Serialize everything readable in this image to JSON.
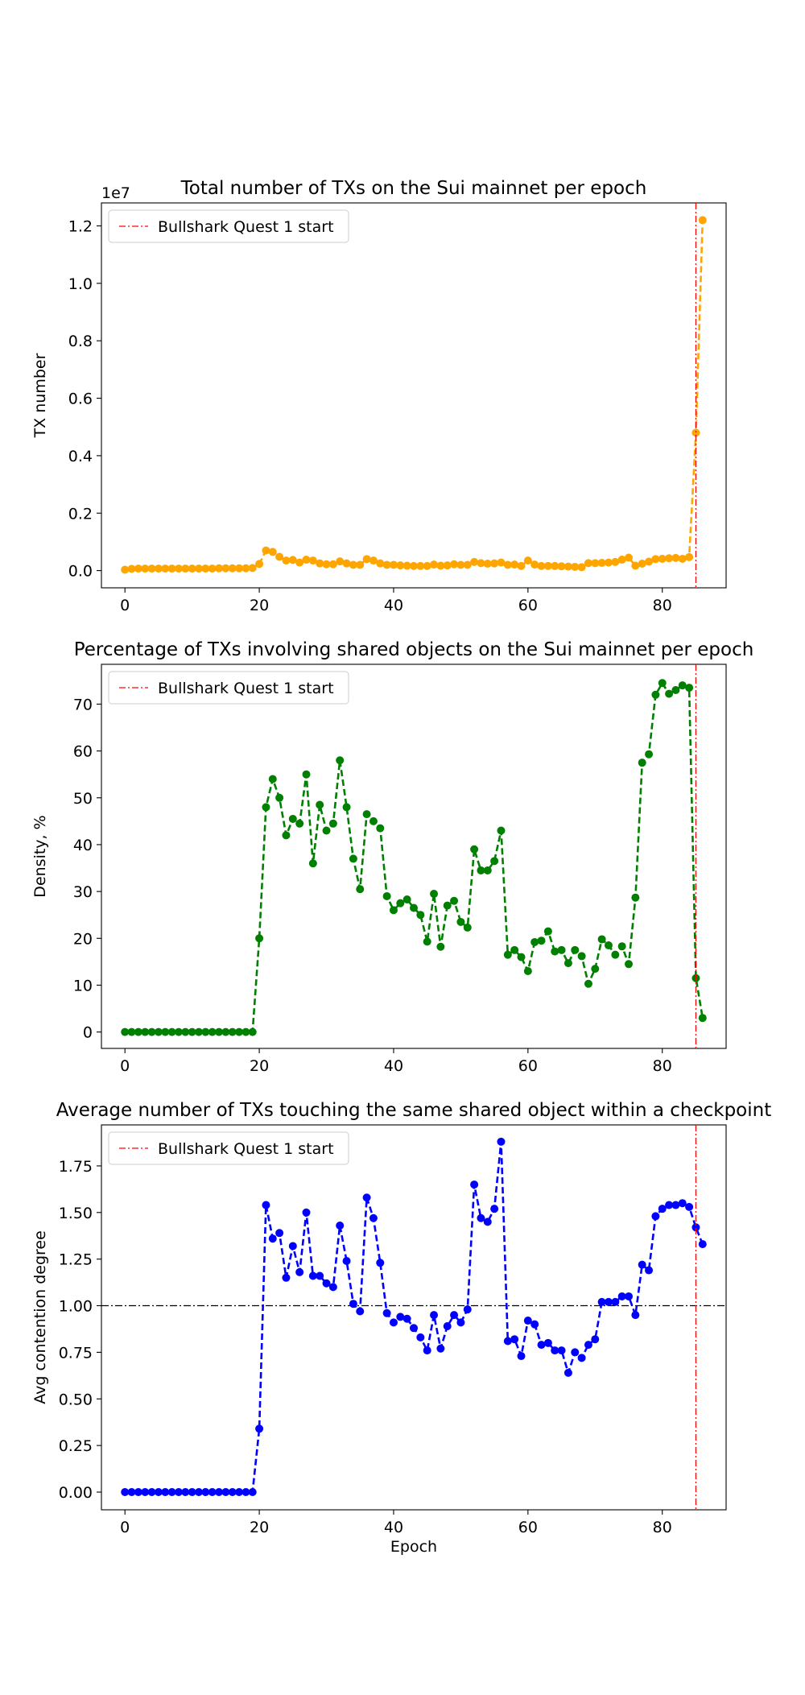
{
  "chart_data": [
    {
      "type": "line",
      "title": "Total number of TXs on the Sui mainnet per epoch",
      "xlabel": "",
      "ylabel": "TX number",
      "offset_text": "1e7",
      "xlim": [
        -3.5,
        89.5
      ],
      "ylim": [
        -0.06,
        1.28
      ],
      "scale": 10000000,
      "xticks": [
        0,
        20,
        40,
        60,
        80
      ],
      "yticks": [
        0.0,
        0.2,
        0.4,
        0.6,
        0.8,
        1.0,
        1.2
      ],
      "ytick_labels": [
        "0.0",
        "0.2",
        "0.4",
        "0.6",
        "0.8",
        "1.0",
        "1.2"
      ],
      "grid": false,
      "legend": {
        "position": "top-left",
        "label": "Bullshark Quest 1 start"
      },
      "vline": {
        "x": 85,
        "color": "#ff0000"
      },
      "series": [
        {
          "color": "#ffa500",
          "x": [
            0,
            1,
            2,
            3,
            4,
            5,
            6,
            7,
            8,
            9,
            10,
            11,
            12,
            13,
            14,
            15,
            16,
            17,
            18,
            19,
            20,
            21,
            22,
            23,
            24,
            25,
            26,
            27,
            28,
            29,
            30,
            31,
            32,
            33,
            34,
            35,
            36,
            37,
            38,
            39,
            40,
            41,
            42,
            43,
            44,
            45,
            46,
            47,
            48,
            49,
            50,
            51,
            52,
            53,
            54,
            55,
            56,
            57,
            58,
            59,
            60,
            61,
            62,
            63,
            64,
            65,
            66,
            67,
            68,
            69,
            70,
            71,
            72,
            73,
            74,
            75,
            76,
            77,
            78,
            79,
            80,
            81,
            82,
            83,
            84,
            85,
            86
          ],
          "values": [
            0.003,
            0.006,
            0.007,
            0.007,
            0.007,
            0.007,
            0.007,
            0.007,
            0.007,
            0.007,
            0.007,
            0.007,
            0.007,
            0.007,
            0.008,
            0.008,
            0.008,
            0.008,
            0.008,
            0.009,
            0.023,
            0.07,
            0.065,
            0.048,
            0.035,
            0.037,
            0.028,
            0.038,
            0.035,
            0.025,
            0.022,
            0.022,
            0.032,
            0.025,
            0.02,
            0.02,
            0.04,
            0.035,
            0.025,
            0.02,
            0.02,
            0.018,
            0.017,
            0.016,
            0.016,
            0.016,
            0.021,
            0.017,
            0.018,
            0.022,
            0.02,
            0.02,
            0.03,
            0.026,
            0.024,
            0.025,
            0.028,
            0.02,
            0.021,
            0.016,
            0.035,
            0.021,
            0.016,
            0.016,
            0.016,
            0.015,
            0.014,
            0.013,
            0.012,
            0.026,
            0.026,
            0.027,
            0.028,
            0.03,
            0.038,
            0.045,
            0.017,
            0.024,
            0.031,
            0.04,
            0.041,
            0.043,
            0.044,
            0.041,
            0.047,
            0.48,
            1.22
          ]
        }
      ]
    },
    {
      "type": "line",
      "title": "Percentage of TXs involving shared objects on the Sui mainnet per epoch",
      "xlabel": "",
      "ylabel": "Density, %",
      "xlim": [
        -3.5,
        89.5
      ],
      "ylim": [
        -3.5,
        78.5
      ],
      "xticks": [
        0,
        20,
        40,
        60,
        80
      ],
      "yticks": [
        0,
        10,
        20,
        30,
        40,
        50,
        60,
        70
      ],
      "ytick_labels": [
        "0",
        "10",
        "20",
        "30",
        "40",
        "50",
        "60",
        "70"
      ],
      "grid": false,
      "legend": {
        "position": "top-left",
        "label": "Bullshark Quest 1 start"
      },
      "vline": {
        "x": 85,
        "color": "#ff0000"
      },
      "series": [
        {
          "color": "#008000",
          "x": [
            0,
            1,
            2,
            3,
            4,
            5,
            6,
            7,
            8,
            9,
            10,
            11,
            12,
            13,
            14,
            15,
            16,
            17,
            18,
            19,
            20,
            21,
            22,
            23,
            24,
            25,
            26,
            27,
            28,
            29,
            30,
            31,
            32,
            33,
            34,
            35,
            36,
            37,
            38,
            39,
            40,
            41,
            42,
            43,
            44,
            45,
            46,
            47,
            48,
            49,
            50,
            51,
            52,
            53,
            54,
            55,
            56,
            57,
            58,
            59,
            60,
            61,
            62,
            63,
            64,
            65,
            66,
            67,
            68,
            69,
            70,
            71,
            72,
            73,
            74,
            75,
            76,
            77,
            78,
            79,
            80,
            81,
            82,
            83,
            84,
            85,
            86
          ],
          "values": [
            0,
            0,
            0,
            0,
            0,
            0,
            0,
            0,
            0,
            0,
            0,
            0,
            0,
            0,
            0,
            0,
            0,
            0,
            0,
            0,
            20,
            48,
            54,
            50,
            42,
            45.5,
            44.5,
            55,
            36,
            48.5,
            43,
            44.5,
            58,
            48,
            37,
            30.5,
            46.5,
            45,
            43.5,
            29,
            26,
            27.5,
            28.3,
            26.5,
            25,
            19.3,
            29.5,
            18.2,
            27,
            28,
            23.5,
            22.3,
            39,
            34.5,
            34.5,
            36.5,
            43,
            16.5,
            17.5,
            16,
            13,
            19.2,
            19.5,
            21.5,
            17.2,
            17.5,
            14.7,
            17.5,
            16.2,
            10.3,
            13.5,
            19.8,
            18.5,
            16.5,
            18.3,
            14.5,
            28.7,
            57.5,
            59.3,
            72,
            74.5,
            72.2,
            73,
            74,
            73.5,
            11.5,
            3
          ]
        }
      ]
    },
    {
      "type": "line",
      "title": "Average number of TXs touching the same shared object within a checkpoint",
      "xlabel": "Epoch",
      "ylabel": "Avg contention degree",
      "xlim": [
        -3.5,
        89.5
      ],
      "ylim": [
        -0.095,
        1.97
      ],
      "xticks": [
        0,
        20,
        40,
        60,
        80
      ],
      "yticks": [
        0.0,
        0.25,
        0.5,
        0.75,
        1.0,
        1.25,
        1.5,
        1.75
      ],
      "ytick_labels": [
        "0.00",
        "0.25",
        "0.50",
        "0.75",
        "1.00",
        "1.25",
        "1.50",
        "1.75"
      ],
      "grid": false,
      "legend": {
        "position": "top-left",
        "label": "Bullshark Quest 1 start"
      },
      "vline": {
        "x": 85,
        "color": "#ff0000"
      },
      "hline": {
        "y": 1.0,
        "color": "#000000"
      },
      "series": [
        {
          "color": "#0000ff",
          "x": [
            0,
            1,
            2,
            3,
            4,
            5,
            6,
            7,
            8,
            9,
            10,
            11,
            12,
            13,
            14,
            15,
            16,
            17,
            18,
            19,
            20,
            21,
            22,
            23,
            24,
            25,
            26,
            27,
            28,
            29,
            30,
            31,
            32,
            33,
            34,
            35,
            36,
            37,
            38,
            39,
            40,
            41,
            42,
            43,
            44,
            45,
            46,
            47,
            48,
            49,
            50,
            51,
            52,
            53,
            54,
            55,
            56,
            57,
            58,
            59,
            60,
            61,
            62,
            63,
            64,
            65,
            66,
            67,
            68,
            69,
            70,
            71,
            72,
            73,
            74,
            75,
            76,
            77,
            78,
            79,
            80,
            81,
            82,
            83,
            84,
            85,
            86
          ],
          "values": [
            0,
            0,
            0,
            0,
            0,
            0,
            0,
            0,
            0,
            0,
            0,
            0,
            0,
            0,
            0,
            0,
            0,
            0,
            0,
            0,
            0.34,
            1.54,
            1.36,
            1.39,
            1.15,
            1.32,
            1.18,
            1.5,
            1.16,
            1.16,
            1.12,
            1.1,
            1.43,
            1.24,
            1.01,
            0.97,
            1.58,
            1.47,
            1.23,
            0.96,
            0.91,
            0.94,
            0.93,
            0.88,
            0.83,
            0.76,
            0.95,
            0.77,
            0.89,
            0.95,
            0.91,
            0.98,
            1.65,
            1.47,
            1.45,
            1.52,
            1.88,
            0.81,
            0.82,
            0.73,
            0.92,
            0.9,
            0.79,
            0.8,
            0.76,
            0.76,
            0.64,
            0.75,
            0.72,
            0.79,
            0.82,
            1.02,
            1.02,
            1.02,
            1.05,
            1.05,
            0.95,
            1.22,
            1.19,
            1.48,
            1.52,
            1.54,
            1.54,
            1.55,
            1.53,
            1.42,
            1.33
          ]
        }
      ]
    }
  ]
}
